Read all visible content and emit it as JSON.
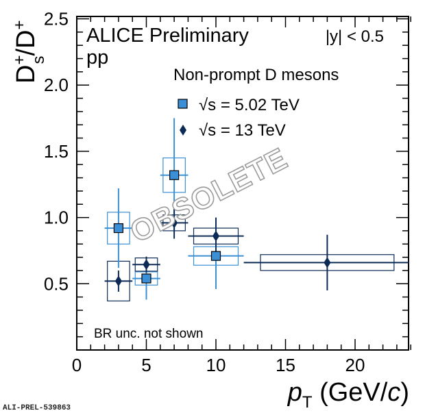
{
  "chart_data": {
    "type": "scatter",
    "title": "ALICE Preliminary",
    "subtitle": "pp",
    "rapidity_label": "|y| < 0.5",
    "legend_title": "Non-prompt D mesons",
    "note": "BR unc. not shown",
    "watermark": "OBSOLETE",
    "figure_id": "ALI-PREL-539863",
    "xlabel": "p_T (GeV/c)",
    "ylabel": "Ds+/D+",
    "xlim": [
      0,
      24
    ],
    "ylim": [
      0.0,
      2.5
    ],
    "xticks": [
      0,
      5,
      10,
      15,
      20
    ],
    "yticks": [
      0.5,
      1.0,
      1.5,
      2.0,
      2.5
    ],
    "ytick_labels": [
      "0.5",
      "1.0",
      "1.5",
      "2.0",
      "2.5"
    ],
    "grid": false,
    "legend_position": "top-center",
    "series": [
      {
        "name": "√s = 5.02 TeV",
        "marker": "square",
        "color": "#3a8fd6",
        "points": [
          {
            "x": 3.0,
            "xlo": 2.0,
            "xhi": 4.0,
            "y": 0.92,
            "stat": 0.3,
            "syst": 0.12,
            "sys_halfwidth": 0.8
          },
          {
            "x": 5.0,
            "xlo": 4.0,
            "xhi": 6.0,
            "y": 0.54,
            "stat": 0.16,
            "syst": 0.05,
            "sys_halfwidth": 0.8
          },
          {
            "x": 7.0,
            "xlo": 6.0,
            "xhi": 8.0,
            "y": 1.32,
            "stat": 0.43,
            "syst": 0.13,
            "sys_halfwidth": 0.8
          },
          {
            "x": 10.0,
            "xlo": 8.0,
            "xhi": 12.0,
            "y": 0.71,
            "stat": 0.25,
            "syst": 0.07,
            "sys_halfwidth": 1.6
          }
        ]
      },
      {
        "name": "√s = 13 TeV",
        "marker": "diamond",
        "color": "#0b2a55",
        "points": [
          {
            "x": 3.0,
            "xlo": 2.0,
            "xhi": 4.0,
            "y": 0.52,
            "stat": 0.08,
            "syst": 0.15,
            "sys_halfwidth": 0.8
          },
          {
            "x": 5.0,
            "xlo": 4.0,
            "xhi": 6.0,
            "y": 0.645,
            "stat": 0.06,
            "syst": 0.05,
            "sys_halfwidth": 0.8
          },
          {
            "x": 7.0,
            "xlo": 6.0,
            "xhi": 8.0,
            "y": 0.96,
            "stat": 0.12,
            "syst": 0.06,
            "sys_halfwidth": 0.8
          },
          {
            "x": 10.0,
            "xlo": 8.0,
            "xhi": 12.0,
            "y": 0.86,
            "stat": 0.14,
            "syst": 0.06,
            "sys_halfwidth": 1.6
          },
          {
            "x": 18.0,
            "xlo": 12.0,
            "xhi": 24.0,
            "y": 0.66,
            "stat": 0.21,
            "syst": 0.06,
            "sys_halfwidth": 4.8
          }
        ]
      }
    ]
  }
}
